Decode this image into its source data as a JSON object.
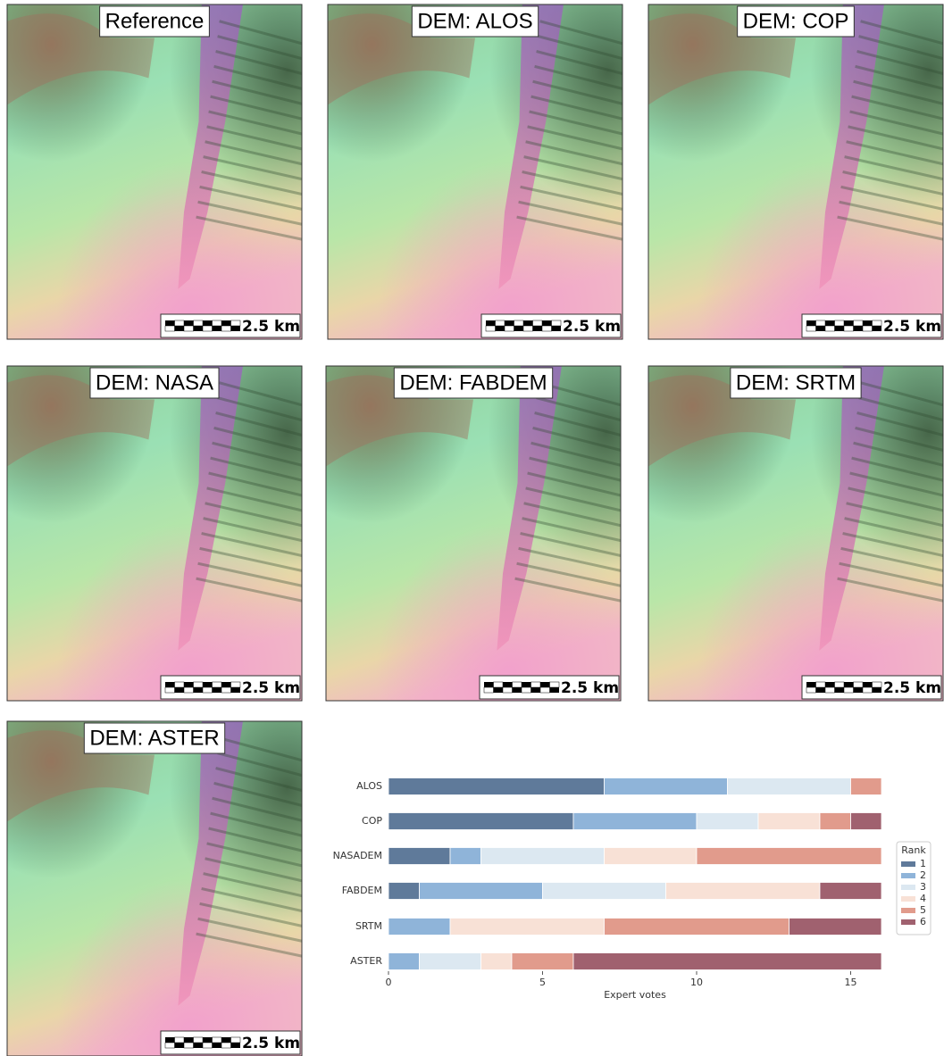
{
  "panels": [
    {
      "label": "Reference",
      "scale": "2.5 km"
    },
    {
      "label": "DEM: ALOS",
      "scale": "2.5 km"
    },
    {
      "label": "DEM: COP",
      "scale": "2.5 km"
    },
    {
      "label": "DEM: NASA",
      "scale": "2.5 km"
    },
    {
      "label": "DEM: FABDEM",
      "scale": "2.5 km"
    },
    {
      "label": "DEM: SRTM",
      "scale": "2.5 km"
    },
    {
      "label": "DEM: ASTER",
      "scale": "2.5 km"
    }
  ],
  "chart_data": {
    "type": "stacked-barh",
    "categories": [
      "ALOS",
      "COP",
      "NASADEM",
      "FABDEM",
      "SRTM",
      "ASTER"
    ],
    "series": [
      {
        "name": "1",
        "color": "#5f7a9a",
        "values": [
          7,
          6,
          2,
          1,
          0,
          0
        ]
      },
      {
        "name": "2",
        "color": "#8fb4d9",
        "values": [
          4,
          4,
          1,
          4,
          2,
          1
        ]
      },
      {
        "name": "3",
        "color": "#dce8f1",
        "values": [
          4,
          2,
          4,
          4,
          0,
          2
        ]
      },
      {
        "name": "4",
        "color": "#f8e1d6",
        "values": [
          0,
          2,
          3,
          5,
          5,
          1
        ]
      },
      {
        "name": "5",
        "color": "#e19b8c",
        "values": [
          1,
          1,
          6,
          0,
          6,
          2
        ]
      },
      {
        "name": "6",
        "color": "#a0616f",
        "values": [
          0,
          1,
          0,
          2,
          3,
          10
        ]
      }
    ],
    "xlim": [
      0,
      16
    ],
    "xticks": [
      0,
      5,
      10,
      15
    ],
    "x_label": "Expert votes",
    "legend_title": "Rank",
    "legend_position": "right"
  }
}
